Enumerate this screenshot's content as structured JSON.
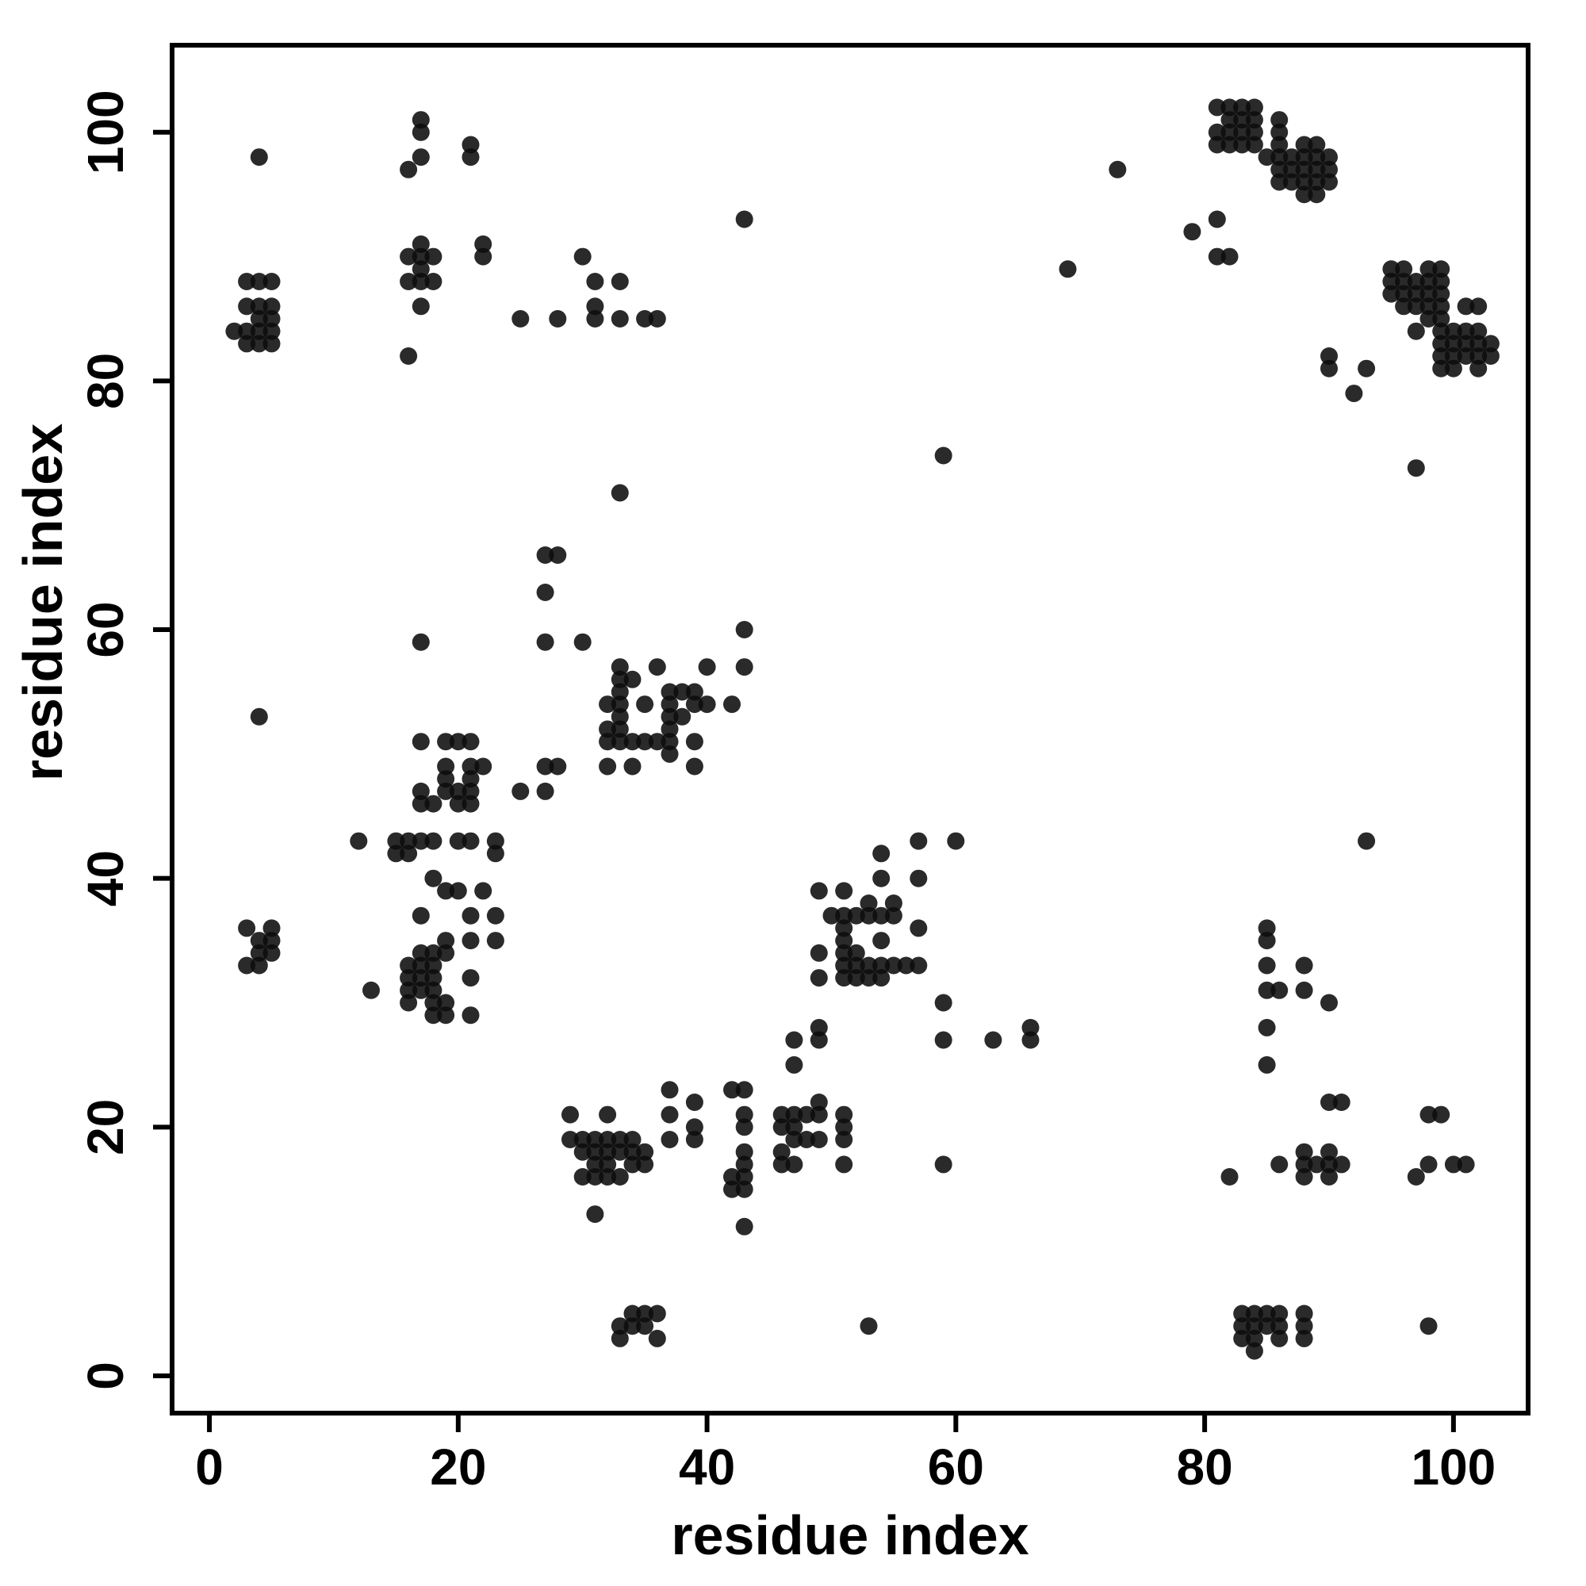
{
  "chart_data": {
    "type": "scatter",
    "title": "",
    "xlabel": "residue index",
    "ylabel": "residue index",
    "xlim": [
      -3,
      106
    ],
    "ylim": [
      -3,
      107
    ],
    "xticks": [
      0,
      20,
      40,
      60,
      80,
      100
    ],
    "yticks": [
      0,
      20,
      40,
      60,
      80,
      100
    ],
    "grid": false,
    "legend": null,
    "marker": {
      "shape": "circle",
      "radius_px": 11,
      "color": "#0d0d0d",
      "opacity": 0.88
    },
    "frame_color": "#000000",
    "background_color": "#ffffff",
    "points": [
      [
        2,
        84
      ],
      [
        3,
        83
      ],
      [
        3,
        84
      ],
      [
        3,
        86
      ],
      [
        3,
        88
      ],
      [
        4,
        83
      ],
      [
        4,
        84
      ],
      [
        4,
        85
      ],
      [
        4,
        86
      ],
      [
        4,
        88
      ],
      [
        4,
        98
      ],
      [
        5,
        83
      ],
      [
        5,
        84
      ],
      [
        5,
        85
      ],
      [
        5,
        86
      ],
      [
        5,
        88
      ],
      [
        16,
        82
      ],
      [
        16,
        88
      ],
      [
        16,
        90
      ],
      [
        16,
        97
      ],
      [
        17,
        86
      ],
      [
        17,
        88
      ],
      [
        17,
        89
      ],
      [
        17,
        90
      ],
      [
        17,
        91
      ],
      [
        17,
        98
      ],
      [
        17,
        100
      ],
      [
        17,
        101
      ],
      [
        18,
        88
      ],
      [
        18,
        90
      ],
      [
        21,
        98
      ],
      [
        21,
        99
      ],
      [
        22,
        90
      ],
      [
        22,
        91
      ],
      [
        25,
        85
      ],
      [
        28,
        85
      ],
      [
        30,
        90
      ],
      [
        31,
        85
      ],
      [
        31,
        86
      ],
      [
        31,
        88
      ],
      [
        33,
        85
      ],
      [
        33,
        88
      ],
      [
        35,
        85
      ],
      [
        36,
        85
      ],
      [
        43,
        93
      ],
      [
        59,
        74
      ],
      [
        69,
        89
      ],
      [
        33,
        71
      ],
      [
        73,
        97
      ],
      [
        79,
        92
      ],
      [
        81,
        93
      ],
      [
        81,
        90
      ],
      [
        82,
        90
      ],
      [
        90,
        81
      ],
      [
        90,
        82
      ],
      [
        92,
        79
      ],
      [
        93,
        81
      ],
      [
        97,
        73
      ],
      [
        81,
        102
      ],
      [
        82,
        102
      ],
      [
        83,
        102
      ],
      [
        84,
        102
      ],
      [
        82,
        101
      ],
      [
        83,
        101
      ],
      [
        84,
        101
      ],
      [
        86,
        101
      ],
      [
        81,
        100
      ],
      [
        82,
        100
      ],
      [
        83,
        100
      ],
      [
        84,
        100
      ],
      [
        86,
        100
      ],
      [
        81,
        99
      ],
      [
        82,
        99
      ],
      [
        83,
        99
      ],
      [
        84,
        99
      ],
      [
        86,
        99
      ],
      [
        88,
        99
      ],
      [
        89,
        99
      ],
      [
        85,
        98
      ],
      [
        86,
        98
      ],
      [
        87,
        98
      ],
      [
        88,
        98
      ],
      [
        89,
        98
      ],
      [
        90,
        98
      ],
      [
        86,
        97
      ],
      [
        87,
        97
      ],
      [
        88,
        97
      ],
      [
        89,
        97
      ],
      [
        90,
        97
      ],
      [
        86,
        96
      ],
      [
        87,
        96
      ],
      [
        88,
        96
      ],
      [
        89,
        96
      ],
      [
        90,
        96
      ],
      [
        88,
        95
      ],
      [
        89,
        95
      ],
      [
        95,
        89
      ],
      [
        96,
        89
      ],
      [
        98,
        89
      ],
      [
        99,
        89
      ],
      [
        95,
        88
      ],
      [
        96,
        88
      ],
      [
        97,
        88
      ],
      [
        98,
        88
      ],
      [
        99,
        88
      ],
      [
        95,
        87
      ],
      [
        96,
        87
      ],
      [
        97,
        87
      ],
      [
        98,
        87
      ],
      [
        99,
        87
      ],
      [
        96,
        86
      ],
      [
        97,
        86
      ],
      [
        98,
        86
      ],
      [
        99,
        86
      ],
      [
        101,
        86
      ],
      [
        102,
        86
      ],
      [
        98,
        85
      ],
      [
        99,
        85
      ],
      [
        97,
        84
      ],
      [
        99,
        84
      ],
      [
        100,
        84
      ],
      [
        101,
        84
      ],
      [
        102,
        84
      ],
      [
        99,
        83
      ],
      [
        100,
        83
      ],
      [
        101,
        83
      ],
      [
        102,
        83
      ],
      [
        103,
        83
      ],
      [
        99,
        82
      ],
      [
        100,
        82
      ],
      [
        101,
        82
      ],
      [
        102,
        82
      ],
      [
        103,
        82
      ],
      [
        99,
        81
      ],
      [
        100,
        81
      ],
      [
        102,
        81
      ],
      [
        27,
        66
      ],
      [
        28,
        66
      ],
      [
        27,
        63
      ],
      [
        17,
        59
      ],
      [
        27,
        59
      ],
      [
        30,
        59
      ],
      [
        4,
        53
      ],
      [
        17,
        51
      ],
      [
        19,
        51
      ],
      [
        20,
        51
      ],
      [
        21,
        51
      ],
      [
        19,
        49
      ],
      [
        21,
        49
      ],
      [
        22,
        49
      ],
      [
        27,
        49
      ],
      [
        28,
        49
      ],
      [
        19,
        48
      ],
      [
        21,
        48
      ],
      [
        17,
        47
      ],
      [
        19,
        47
      ],
      [
        20,
        47
      ],
      [
        21,
        47
      ],
      [
        25,
        47
      ],
      [
        27,
        47
      ],
      [
        17,
        46
      ],
      [
        18,
        46
      ],
      [
        20,
        46
      ],
      [
        21,
        46
      ],
      [
        12,
        43
      ],
      [
        15,
        43
      ],
      [
        16,
        43
      ],
      [
        17,
        43
      ],
      [
        18,
        43
      ],
      [
        20,
        43
      ],
      [
        21,
        43
      ],
      [
        23,
        43
      ],
      [
        15,
        42
      ],
      [
        16,
        42
      ],
      [
        23,
        42
      ],
      [
        18,
        40
      ],
      [
        19,
        39
      ],
      [
        20,
        39
      ],
      [
        22,
        39
      ],
      [
        17,
        37
      ],
      [
        21,
        37
      ],
      [
        23,
        37
      ],
      [
        19,
        35
      ],
      [
        21,
        35
      ],
      [
        23,
        35
      ],
      [
        13,
        31
      ],
      [
        21,
        32
      ],
      [
        21,
        29
      ],
      [
        16,
        30
      ],
      [
        16,
        31
      ],
      [
        16,
        32
      ],
      [
        16,
        33
      ],
      [
        17,
        31
      ],
      [
        17,
        32
      ],
      [
        17,
        33
      ],
      [
        17,
        34
      ],
      [
        18,
        29
      ],
      [
        18,
        30
      ],
      [
        18,
        31
      ],
      [
        18,
        32
      ],
      [
        18,
        33
      ],
      [
        18,
        34
      ],
      [
        19,
        29
      ],
      [
        19,
        30
      ],
      [
        19,
        34
      ],
      [
        3,
        33
      ],
      [
        3,
        36
      ],
      [
        4,
        33
      ],
      [
        4,
        34
      ],
      [
        4,
        35
      ],
      [
        5,
        34
      ],
      [
        5,
        35
      ],
      [
        5,
        36
      ],
      [
        43,
        60
      ],
      [
        33,
        57
      ],
      [
        36,
        57
      ],
      [
        40,
        57
      ],
      [
        43,
        57
      ],
      [
        33,
        56
      ],
      [
        34,
        56
      ],
      [
        33,
        55
      ],
      [
        37,
        55
      ],
      [
        38,
        55
      ],
      [
        39,
        55
      ],
      [
        32,
        54
      ],
      [
        33,
        54
      ],
      [
        35,
        54
      ],
      [
        37,
        54
      ],
      [
        39,
        54
      ],
      [
        40,
        54
      ],
      [
        42,
        54
      ],
      [
        33,
        53
      ],
      [
        37,
        53
      ],
      [
        38,
        53
      ],
      [
        32,
        52
      ],
      [
        33,
        52
      ],
      [
        37,
        52
      ],
      [
        32,
        51
      ],
      [
        33,
        51
      ],
      [
        34,
        51
      ],
      [
        35,
        51
      ],
      [
        36,
        51
      ],
      [
        37,
        51
      ],
      [
        39,
        51
      ],
      [
        37,
        50
      ],
      [
        32,
        49
      ],
      [
        34,
        49
      ],
      [
        39,
        49
      ],
      [
        57,
        43
      ],
      [
        60,
        43
      ],
      [
        54,
        42
      ],
      [
        54,
        40
      ],
      [
        57,
        40
      ],
      [
        49,
        39
      ],
      [
        51,
        39
      ],
      [
        53,
        38
      ],
      [
        55,
        38
      ],
      [
        50,
        37
      ],
      [
        51,
        37
      ],
      [
        52,
        37
      ],
      [
        53,
        37
      ],
      [
        54,
        37
      ],
      [
        55,
        37
      ],
      [
        51,
        36
      ],
      [
        57,
        36
      ],
      [
        51,
        35
      ],
      [
        54,
        35
      ],
      [
        49,
        34
      ],
      [
        51,
        34
      ],
      [
        52,
        34
      ],
      [
        51,
        33
      ],
      [
        52,
        33
      ],
      [
        53,
        33
      ],
      [
        54,
        33
      ],
      [
        55,
        33
      ],
      [
        56,
        33
      ],
      [
        57,
        33
      ],
      [
        49,
        32
      ],
      [
        51,
        32
      ],
      [
        52,
        32
      ],
      [
        53,
        32
      ],
      [
        54,
        32
      ],
      [
        59,
        30
      ],
      [
        59,
        27
      ],
      [
        63,
        27
      ],
      [
        66,
        27
      ],
      [
        66,
        28
      ],
      [
        47,
        27
      ],
      [
        49,
        27
      ],
      [
        49,
        28
      ],
      [
        47,
        25
      ],
      [
        49,
        22
      ],
      [
        46,
        21
      ],
      [
        47,
        21
      ],
      [
        48,
        21
      ],
      [
        49,
        21
      ],
      [
        51,
        21
      ],
      [
        46,
        20
      ],
      [
        47,
        20
      ],
      [
        51,
        20
      ],
      [
        47,
        19
      ],
      [
        48,
        19
      ],
      [
        49,
        19
      ],
      [
        51,
        19
      ],
      [
        46,
        18
      ],
      [
        46,
        17
      ],
      [
        47,
        17
      ],
      [
        51,
        17
      ],
      [
        59,
        17
      ],
      [
        37,
        23
      ],
      [
        39,
        22
      ],
      [
        29,
        21
      ],
      [
        32,
        21
      ],
      [
        37,
        21
      ],
      [
        39,
        20
      ],
      [
        29,
        19
      ],
      [
        30,
        19
      ],
      [
        31,
        19
      ],
      [
        32,
        19
      ],
      [
        33,
        19
      ],
      [
        34,
        19
      ],
      [
        37,
        19
      ],
      [
        39,
        19
      ],
      [
        30,
        18
      ],
      [
        31,
        18
      ],
      [
        32,
        18
      ],
      [
        33,
        18
      ],
      [
        34,
        18
      ],
      [
        35,
        18
      ],
      [
        31,
        17
      ],
      [
        32,
        17
      ],
      [
        34,
        17
      ],
      [
        35,
        17
      ],
      [
        30,
        16
      ],
      [
        31,
        16
      ],
      [
        32,
        16
      ],
      [
        33,
        16
      ],
      [
        31,
        13
      ],
      [
        43,
        12
      ],
      [
        42,
        15
      ],
      [
        43,
        15
      ],
      [
        42,
        16
      ],
      [
        43,
        16
      ],
      [
        43,
        17
      ],
      [
        43,
        18
      ],
      [
        43,
        20
      ],
      [
        43,
        21
      ],
      [
        42,
        23
      ],
      [
        43,
        23
      ],
      [
        85,
        36
      ],
      [
        85,
        35
      ],
      [
        85,
        33
      ],
      [
        88,
        33
      ],
      [
        85,
        31
      ],
      [
        86,
        31
      ],
      [
        88,
        31
      ],
      [
        90,
        30
      ],
      [
        85,
        28
      ],
      [
        85,
        25
      ],
      [
        90,
        22
      ],
      [
        91,
        22
      ],
      [
        98,
        21
      ],
      [
        99,
        21
      ],
      [
        93,
        43
      ],
      [
        82,
        16
      ],
      [
        86,
        17
      ],
      [
        88,
        16
      ],
      [
        88,
        17
      ],
      [
        88,
        18
      ],
      [
        89,
        17
      ],
      [
        90,
        16
      ],
      [
        90,
        17
      ],
      [
        90,
        18
      ],
      [
        91,
        17
      ],
      [
        97,
        16
      ],
      [
        98,
        17
      ],
      [
        100,
        17
      ],
      [
        101,
        17
      ],
      [
        33,
        3
      ],
      [
        33,
        4
      ],
      [
        34,
        4
      ],
      [
        34,
        5
      ],
      [
        35,
        4
      ],
      [
        35,
        5
      ],
      [
        36,
        3
      ],
      [
        36,
        5
      ],
      [
        53,
        4
      ],
      [
        98,
        4
      ],
      [
        83,
        3
      ],
      [
        83,
        4
      ],
      [
        83,
        5
      ],
      [
        84,
        2
      ],
      [
        84,
        3
      ],
      [
        84,
        4
      ],
      [
        84,
        5
      ],
      [
        85,
        4
      ],
      [
        85,
        5
      ],
      [
        86,
        3
      ],
      [
        86,
        4
      ],
      [
        86,
        5
      ],
      [
        88,
        3
      ],
      [
        88,
        4
      ],
      [
        88,
        5
      ]
    ]
  }
}
